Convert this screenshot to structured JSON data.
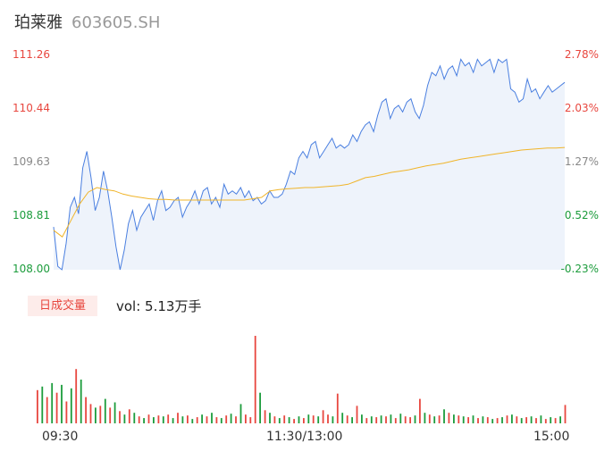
{
  "header": {
    "name": "珀莱雅",
    "code": "603605.SH"
  },
  "colors": {
    "up": "#e8473f",
    "down": "#1c9c3c",
    "neutral": "#888888",
    "price_line": "#4a7fe0",
    "avg_line": "#f0b429",
    "area_fill": "#eef3fb"
  },
  "chart_data": {
    "type": "line",
    "y_left_ticks": [
      "111.26",
      "110.44",
      "109.63",
      "108.81",
      "108.00"
    ],
    "y_right_ticks": [
      "2.78%",
      "2.03%",
      "1.27%",
      "0.52%",
      "-0.23%"
    ],
    "ylim": [
      108.0,
      111.26
    ],
    "x_ticks": [
      "09:30",
      "11:30/13:00",
      "15:00"
    ],
    "price": [
      108.65,
      108.05,
      108.0,
      108.4,
      108.95,
      109.1,
      108.85,
      109.55,
      109.8,
      109.4,
      108.9,
      109.1,
      109.5,
      109.2,
      108.8,
      108.35,
      108.0,
      108.3,
      108.7,
      108.9,
      108.6,
      108.8,
      108.9,
      109.0,
      108.75,
      109.05,
      109.2,
      108.9,
      108.95,
      109.05,
      109.1,
      108.8,
      108.95,
      109.05,
      109.2,
      109.0,
      109.2,
      109.25,
      109.0,
      109.1,
      108.95,
      109.3,
      109.15,
      109.2,
      109.15,
      109.25,
      109.1,
      109.2,
      109.05,
      109.1,
      109.0,
      109.05,
      109.2,
      109.1,
      109.1,
      109.15,
      109.3,
      109.5,
      109.45,
      109.7,
      109.8,
      109.7,
      109.9,
      109.95,
      109.7,
      109.8,
      109.9,
      110.0,
      109.85,
      109.9,
      109.85,
      109.9,
      110.05,
      109.95,
      110.1,
      110.2,
      110.25,
      110.1,
      110.35,
      110.55,
      110.6,
      110.3,
      110.45,
      110.5,
      110.4,
      110.55,
      110.6,
      110.4,
      110.3,
      110.5,
      110.8,
      111.0,
      110.95,
      111.1,
      110.9,
      111.05,
      111.1,
      110.95,
      111.2,
      111.1,
      111.15,
      111.0,
      111.2,
      111.1,
      111.15,
      111.2,
      111.0,
      111.2,
      111.15,
      111.2,
      110.75,
      110.7,
      110.55,
      110.6,
      110.9,
      110.7,
      110.75,
      110.6,
      110.7,
      110.8,
      110.7,
      110.75,
      110.8,
      110.85
    ],
    "avg": [
      108.6,
      108.5,
      108.75,
      109.0,
      109.18,
      109.25,
      109.22,
      109.2,
      109.15,
      109.12,
      109.1,
      109.08,
      109.07,
      109.07,
      109.06,
      109.06,
      109.06,
      109.06,
      109.06,
      109.06,
      109.06,
      109.06,
      109.06,
      109.08,
      109.1,
      109.2,
      109.22,
      109.23,
      109.24,
      109.25,
      109.25,
      109.26,
      109.27,
      109.28,
      109.3,
      109.35,
      109.4,
      109.42,
      109.45,
      109.48,
      109.5,
      109.52,
      109.55,
      109.58,
      109.6,
      109.62,
      109.65,
      109.68,
      109.7,
      109.72,
      109.74,
      109.76,
      109.78,
      109.8,
      109.82,
      109.83,
      109.84,
      109.85,
      109.85,
      109.86
    ],
    "volume_series": {
      "name": "日成交量",
      "total_label": "vol: 5.13万手",
      "values": [
        0.38,
        0.42,
        0.3,
        0.46,
        0.35,
        0.44,
        0.25,
        0.4,
        0.62,
        0.5,
        0.3,
        0.22,
        0.18,
        0.2,
        0.28,
        0.18,
        0.24,
        0.14,
        0.1,
        0.16,
        0.12,
        0.08,
        0.06,
        0.1,
        0.07,
        0.09,
        0.08,
        0.1,
        0.06,
        0.12,
        0.08,
        0.09,
        0.05,
        0.07,
        0.1,
        0.08,
        0.12,
        0.07,
        0.06,
        0.09,
        0.11,
        0.08,
        0.22,
        0.1,
        0.07,
        1.0,
        0.35,
        0.15,
        0.12,
        0.08,
        0.06,
        0.09,
        0.07,
        0.05,
        0.08,
        0.06,
        0.1,
        0.09,
        0.08,
        0.15,
        0.1,
        0.08,
        0.34,
        0.12,
        0.09,
        0.07,
        0.2,
        0.1,
        0.06,
        0.08,
        0.07,
        0.09,
        0.08,
        0.1,
        0.06,
        0.11,
        0.08,
        0.07,
        0.09,
        0.28,
        0.12,
        0.1,
        0.08,
        0.09,
        0.16,
        0.12,
        0.1,
        0.09,
        0.08,
        0.07,
        0.09,
        0.06,
        0.08,
        0.07,
        0.05,
        0.06,
        0.07,
        0.09,
        0.1,
        0.08,
        0.06,
        0.07,
        0.08,
        0.06,
        0.09,
        0.05,
        0.07,
        0.06,
        0.08,
        0.21
      ],
      "directions": "rgrgrgrgrgrrgrgrgrgrgrgrgrgrgrgrgrgrgrgrgrgrrrgrgrgrgrgrgrgrrgrgrgrgrgrgrgrgrrgrgrgrgrgrgrgrgrgrgrgrgrgrgrgrgrgrg"
    }
  }
}
